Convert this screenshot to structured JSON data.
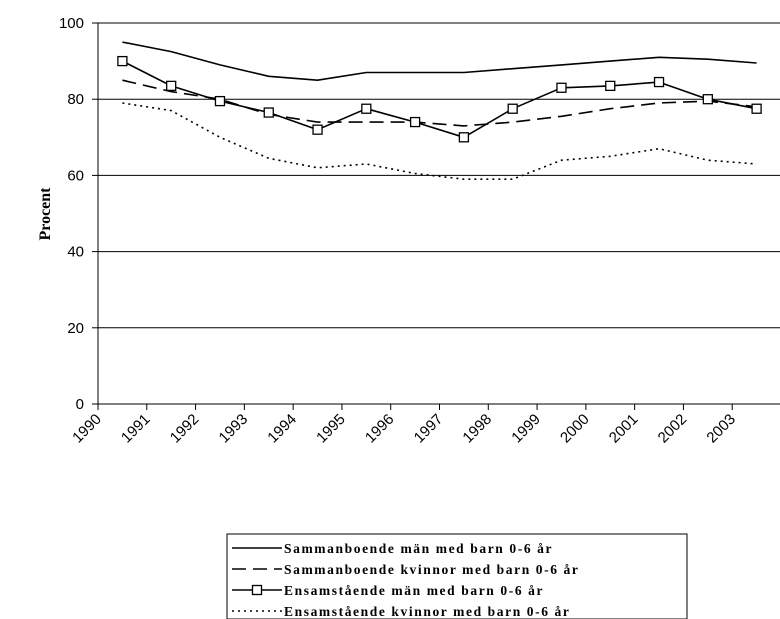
{
  "chart_data": {
    "type": "line",
    "title": "",
    "xlabel": "",
    "ylabel": "Procent",
    "ylim": [
      0,
      100
    ],
    "yticks": [
      0,
      20,
      40,
      60,
      80,
      100
    ],
    "grid": "horizontal",
    "legend_position": "bottom",
    "categories": [
      "1990",
      "1991",
      "1992",
      "1993",
      "1994",
      "1995",
      "1996",
      "1997",
      "1998",
      "1999",
      "2000",
      "2001",
      "2002",
      "2003"
    ],
    "series": [
      {
        "name": "Sammanboende män med barn 0-6 år",
        "style": "solid",
        "marker": "none",
        "color": "#000000",
        "values": [
          95,
          92.5,
          89,
          86,
          85,
          87,
          87,
          87,
          88,
          89,
          90,
          91,
          90.5,
          89.5
        ]
      },
      {
        "name": "Sammanboende kvinnor med barn 0-6 år",
        "style": "dashed",
        "marker": "none",
        "color": "#000000",
        "values": [
          85,
          82,
          80,
          76,
          74,
          74,
          74,
          73,
          74,
          75.5,
          77.5,
          79,
          79.5,
          78
        ]
      },
      {
        "name": "Ensamstående män med barn 0-6 år",
        "style": "solid",
        "marker": "square",
        "color": "#000000",
        "values": [
          90,
          83.5,
          79.5,
          76.5,
          72,
          77.5,
          74,
          70,
          77.5,
          83,
          83.5,
          84.5,
          80,
          77.5
        ]
      },
      {
        "name": "Ensamstående kvinnor med barn 0-6 år",
        "style": "dotted",
        "marker": "none",
        "color": "#000000",
        "values": [
          79,
          77,
          70,
          64.5,
          62,
          63,
          60.5,
          59,
          59,
          64,
          65,
          67,
          64,
          63
        ]
      }
    ]
  }
}
